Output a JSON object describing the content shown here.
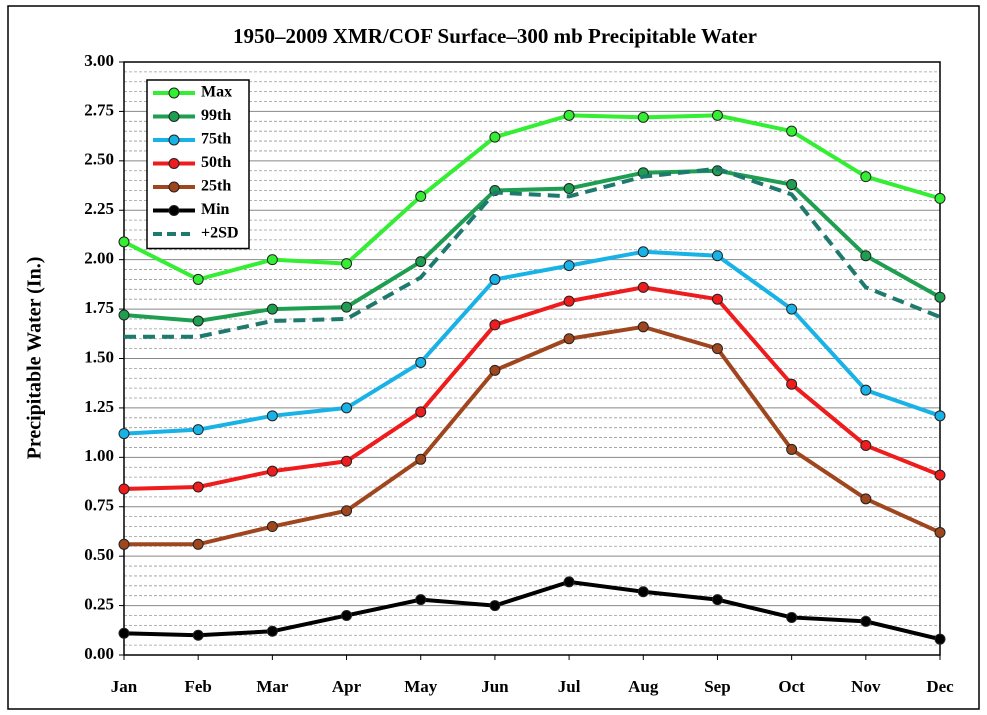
{
  "chart_data": {
    "type": "line",
    "title": "1950–2009 XMR/COF Surface–300 mb Precipitable Water",
    "y_label": "Precipitable Water (In.)",
    "categories": [
      "Jan",
      "Feb",
      "Mar",
      "Apr",
      "May",
      "Jun",
      "Jul",
      "Aug",
      "Sep",
      "Oct",
      "Nov",
      "Dec"
    ],
    "series": [
      {
        "name": "Max",
        "color": "#33ee33",
        "markers": true,
        "dashed": false,
        "values": [
          2.09,
          1.9,
          2.0,
          1.98,
          2.32,
          2.62,
          2.73,
          2.72,
          2.73,
          2.65,
          2.42,
          2.31
        ]
      },
      {
        "name": "99th",
        "color": "#1e9e50",
        "markers": true,
        "dashed": false,
        "values": [
          1.72,
          1.69,
          1.75,
          1.76,
          1.99,
          2.35,
          2.36,
          2.44,
          2.45,
          2.38,
          2.02,
          1.81
        ]
      },
      {
        "name": "75th",
        "color": "#19b2e6",
        "markers": true,
        "dashed": false,
        "values": [
          1.12,
          1.14,
          1.21,
          1.25,
          1.48,
          1.9,
          1.97,
          2.04,
          2.02,
          1.75,
          1.34,
          1.21
        ]
      },
      {
        "name": "50th",
        "color": "#ee1c1c",
        "markers": true,
        "dashed": false,
        "values": [
          0.84,
          0.85,
          0.93,
          0.98,
          1.23,
          1.67,
          1.79,
          1.86,
          1.8,
          1.37,
          1.06,
          0.91
        ]
      },
      {
        "name": "25th",
        "color": "#a0461e",
        "markers": true,
        "dashed": false,
        "values": [
          0.56,
          0.56,
          0.65,
          0.73,
          0.99,
          1.44,
          1.6,
          1.66,
          1.55,
          1.04,
          0.79,
          0.62
        ]
      },
      {
        "name": "Min",
        "color": "#000000",
        "markers": true,
        "dashed": false,
        "values": [
          0.11,
          0.1,
          0.12,
          0.2,
          0.28,
          0.25,
          0.37,
          0.32,
          0.28,
          0.19,
          0.17,
          0.08
        ]
      },
      {
        "name": "+2SD",
        "color": "#1f7a6e",
        "markers": false,
        "dashed": true,
        "values": [
          1.61,
          1.61,
          1.69,
          1.7,
          1.91,
          2.34,
          2.32,
          2.42,
          2.46,
          2.33,
          1.86,
          1.71
        ]
      }
    ],
    "ylim": [
      0,
      3
    ],
    "yticks": [
      {
        "value": 0,
        "label": "0.00"
      },
      {
        "value": 0.25,
        "label": "0.25"
      },
      {
        "value": 0.5,
        "label": "0.50"
      },
      {
        "value": 0.75,
        "label": "0.75"
      },
      {
        "value": 1,
        "label": "1.00"
      },
      {
        "value": 1.25,
        "label": "1.25"
      },
      {
        "value": 1.5,
        "label": "1.50"
      },
      {
        "value": 1.75,
        "label": "1.75"
      },
      {
        "value": 2,
        "label": "2.00"
      },
      {
        "value": 2.25,
        "label": "2.25"
      },
      {
        "value": 2.5,
        "label": "2.50"
      },
      {
        "value": 2.75,
        "label": "2.75"
      },
      {
        "value": 3,
        "label": "3.00"
      }
    ],
    "minor_yticks": [
      0.05,
      0.1,
      0.15,
      0.2,
      0.3,
      0.35,
      0.4,
      0.45,
      0.55,
      0.6,
      0.65,
      0.7,
      0.8,
      0.85,
      0.9,
      0.95,
      1.05,
      1.1,
      1.15,
      1.2,
      1.3,
      1.35,
      1.4,
      1.45,
      1.55,
      1.6,
      1.65,
      1.7,
      1.8,
      1.85,
      1.9,
      1.95,
      2.05,
      2.1,
      2.15,
      2.2,
      2.3,
      2.35,
      2.4,
      2.45,
      2.55,
      2.6,
      2.65,
      2.7,
      2.8,
      2.85,
      2.9,
      2.95
    ],
    "grid": true,
    "legend": "upper left"
  }
}
